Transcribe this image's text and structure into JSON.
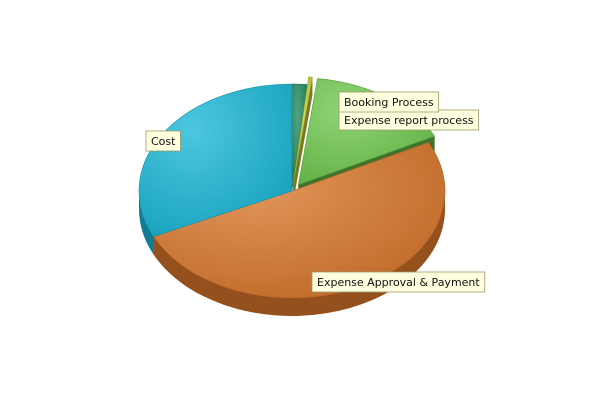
{
  "chart_data": {
    "type": "pie",
    "style": "3d-exploded",
    "title": "",
    "slices": [
      {
        "label": "Expense report process",
        "value": 1.6,
        "color": "#1e8a5c",
        "exploded": false,
        "show_label": true
      },
      {
        "label": "Booking Process",
        "value": 0.4,
        "color": "#c8d23a",
        "exploded": true,
        "show_label": true
      },
      {
        "label": "",
        "value": 15.5,
        "color": "#6fc84e",
        "exploded": true,
        "show_label": false
      },
      {
        "label": "Expense Approval & Payment",
        "value": 50.5,
        "color": "#d9772c",
        "exploded": false,
        "show_label": true
      },
      {
        "label": "Cost",
        "value": 32.0,
        "color": "#1ab7d6",
        "exploded": false,
        "show_label": true
      }
    ]
  }
}
